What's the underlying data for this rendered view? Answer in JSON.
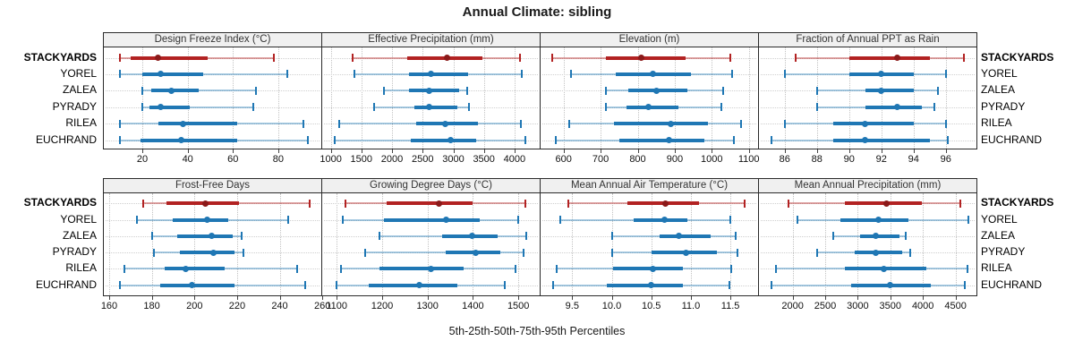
{
  "title": "Annual Climate: sibling",
  "caption": "5th-25th-50th-75th-95th Percentiles",
  "sites": [
    "STACKYARDS",
    "YOREL",
    "ZALEA",
    "PYRADY",
    "RILEA",
    "EUCHRAND"
  ],
  "highlight_site": "STACKYARDS",
  "colors": {
    "highlight_line": "#b22222",
    "highlight_light": "rgba(178,34,34,0.42)",
    "highlight_dot": "#8b1a1a",
    "normal_line": "#1f77b4",
    "normal_light": "rgba(31,119,180,0.40)",
    "normal_dot": "#1f77b4",
    "header_bg": "#f0f0f0",
    "panel_border": "#2a2a2a",
    "grid": "#c3c3c3"
  },
  "chart_data": [
    {
      "type": "percentile_interval",
      "title": "Design Freeze Index (°C)",
      "percentiles": [
        5,
        25,
        50,
        75,
        95
      ],
      "domain": [
        3,
        99
      ],
      "tick_values": [
        20,
        40,
        60,
        80
      ],
      "tick_labels": [
        "20",
        "40",
        "60",
        "80"
      ],
      "series": [
        {
          "name": "STACKYARDS",
          "values": [
            10,
            15,
            27,
            49,
            78
          ]
        },
        {
          "name": "YOREL",
          "values": [
            10,
            20,
            28,
            47,
            84
          ]
        },
        {
          "name": "ZALEA",
          "values": [
            20,
            24,
            33,
            45,
            70
          ]
        },
        {
          "name": "PYRADY",
          "values": [
            20,
            23,
            28,
            41,
            69
          ]
        },
        {
          "name": "RILEA",
          "values": [
            10,
            27,
            38,
            62,
            91
          ]
        },
        {
          "name": "EUCHRAND",
          "values": [
            10,
            19,
            37,
            62,
            93
          ]
        }
      ]
    },
    {
      "type": "percentile_interval",
      "title": "Effective Precipitation (mm)",
      "percentiles": [
        5,
        25,
        50,
        75,
        95
      ],
      "domain": [
        860,
        4410
      ],
      "tick_values": [
        1000,
        1500,
        2000,
        2500,
        3000,
        3500,
        4000
      ],
      "tick_labels": [
        "1000",
        "1500",
        "2000",
        "2500",
        "3000",
        "3500",
        "4000"
      ],
      "series": [
        {
          "name": "STACKYARDS",
          "values": [
            1360,
            2250,
            2900,
            3480,
            4090
          ]
        },
        {
          "name": "YOREL",
          "values": [
            1390,
            2270,
            2640,
            3240,
            4110
          ]
        },
        {
          "name": "ZALEA",
          "values": [
            1860,
            2270,
            2610,
            3100,
            3230
          ]
        },
        {
          "name": "PYRADY",
          "values": [
            1710,
            2370,
            2600,
            3070,
            3260
          ]
        },
        {
          "name": "RILEA",
          "values": [
            1130,
            2390,
            2870,
            3400,
            4100
          ]
        },
        {
          "name": "EUCHRAND",
          "values": [
            1060,
            2310,
            2950,
            3380,
            4170
          ]
        }
      ]
    },
    {
      "type": "percentile_interval",
      "title": "Elevation (m)",
      "percentiles": [
        5,
        25,
        50,
        75,
        95
      ],
      "domain": [
        538,
        1125
      ],
      "tick_values": [
        600,
        700,
        800,
        900,
        1000,
        1100
      ],
      "tick_labels": [
        "600",
        "700",
        "800",
        "900",
        "1000",
        "1100"
      ],
      "series": [
        {
          "name": "STACKYARDS",
          "values": [
            570,
            715,
            810,
            930,
            1050
          ]
        },
        {
          "name": "YOREL",
          "values": [
            620,
            740,
            840,
            945,
            1055
          ]
        },
        {
          "name": "ZALEA",
          "values": [
            715,
            775,
            850,
            935,
            1030
          ]
        },
        {
          "name": "PYRADY",
          "values": [
            715,
            770,
            830,
            910,
            1025
          ]
        },
        {
          "name": "RILEA",
          "values": [
            615,
            735,
            890,
            990,
            1080
          ]
        },
        {
          "name": "EUCHRAND",
          "values": [
            580,
            750,
            885,
            980,
            1060
          ]
        }
      ]
    },
    {
      "type": "percentile_interval",
      "title": "Fraction of Annual PPT as Rain",
      "percentiles": [
        5,
        25,
        50,
        75,
        95
      ],
      "domain": [
        84.4,
        97.9
      ],
      "tick_values": [
        86,
        88,
        90,
        92,
        94,
        96
      ],
      "tick_labels": [
        "86",
        "88",
        "90",
        "92",
        "94",
        "96"
      ],
      "series": [
        {
          "name": "STACKYARDS",
          "values": [
            86.7,
            90,
            93,
            95,
            97.1
          ]
        },
        {
          "name": "YOREL",
          "values": [
            86,
            90,
            92,
            94,
            96
          ]
        },
        {
          "name": "ZALEA",
          "values": [
            88,
            91,
            92,
            94,
            95.5
          ]
        },
        {
          "name": "PYRADY",
          "values": [
            88,
            91,
            93,
            94.5,
            95.3
          ]
        },
        {
          "name": "RILEA",
          "values": [
            86,
            89,
            91,
            94,
            96
          ]
        },
        {
          "name": "EUCHRAND",
          "values": [
            85.2,
            89,
            91,
            95,
            96.1
          ]
        }
      ]
    },
    {
      "type": "percentile_interval",
      "title": "Frost-Free Days",
      "percentiles": [
        5,
        25,
        50,
        75,
        95
      ],
      "domain": [
        157.5,
        259.5
      ],
      "tick_values": [
        160,
        180,
        200,
        220,
        240,
        260
      ],
      "tick_labels": [
        "160",
        "180",
        "200",
        "220",
        "240",
        "260"
      ],
      "series": [
        {
          "name": "STACKYARDS",
          "values": [
            176,
            187,
            205,
            221,
            254
          ]
        },
        {
          "name": "YOREL",
          "values": [
            173,
            190,
            206,
            216,
            244
          ]
        },
        {
          "name": "ZALEA",
          "values": [
            180,
            192,
            208,
            218,
            222
          ]
        },
        {
          "name": "PYRADY",
          "values": [
            181,
            193,
            209,
            219,
            223
          ]
        },
        {
          "name": "RILEA",
          "values": [
            167,
            186,
            196,
            214,
            248
          ]
        },
        {
          "name": "EUCHRAND",
          "values": [
            165,
            184,
            199,
            219,
            252
          ]
        }
      ]
    },
    {
      "type": "percentile_interval",
      "title": "Growing Degree Days (°C)",
      "percentiles": [
        5,
        25,
        50,
        75,
        95
      ],
      "domain": [
        1068,
        1547
      ],
      "tick_values": [
        1100,
        1200,
        1300,
        1400,
        1500
      ],
      "tick_labels": [
        "1100",
        "1200",
        "1300",
        "1400",
        "1500"
      ],
      "series": [
        {
          "name": "STACKYARDS",
          "values": [
            1120,
            1210,
            1325,
            1400,
            1515
          ]
        },
        {
          "name": "YOREL",
          "values": [
            1113,
            1203,
            1340,
            1415,
            1500
          ]
        },
        {
          "name": "ZALEA",
          "values": [
            1195,
            1333,
            1398,
            1455,
            1517
          ]
        },
        {
          "name": "PYRADY",
          "values": [
            1163,
            1340,
            1405,
            1460,
            1512
          ]
        },
        {
          "name": "RILEA",
          "values": [
            1110,
            1195,
            1308,
            1380,
            1494
          ]
        },
        {
          "name": "EUCHRAND",
          "values": [
            1099,
            1170,
            1281,
            1365,
            1470
          ]
        }
      ]
    },
    {
      "type": "percentile_interval",
      "title": "Mean Annual Air Temperature (°C)",
      "percentiles": [
        5,
        25,
        50,
        75,
        95
      ],
      "domain": [
        9.1,
        11.85
      ],
      "tick_values": [
        9.5,
        10.0,
        10.5,
        11.0,
        11.5
      ],
      "tick_labels": [
        "9.5",
        "10.0",
        "10.5",
        "11.0",
        "11.5"
      ],
      "series": [
        {
          "name": "STACKYARDS",
          "values": [
            9.45,
            10.2,
            10.68,
            11.1,
            11.68
          ]
        },
        {
          "name": "YOREL",
          "values": [
            9.35,
            10.28,
            10.67,
            10.96,
            11.5
          ]
        },
        {
          "name": "ZALEA",
          "values": [
            10.0,
            10.6,
            10.85,
            11.25,
            11.57
          ]
        },
        {
          "name": "PYRADY",
          "values": [
            10.0,
            10.5,
            10.94,
            11.33,
            11.59
          ]
        },
        {
          "name": "RILEA",
          "values": [
            9.3,
            10.02,
            10.52,
            10.9,
            11.51
          ]
        },
        {
          "name": "EUCHRAND",
          "values": [
            9.26,
            9.94,
            10.5,
            10.9,
            11.49
          ]
        }
      ]
    },
    {
      "type": "percentile_interval",
      "title": "Mean Annual Precipitation (mm)",
      "percentiles": [
        5,
        25,
        50,
        75,
        95
      ],
      "domain": [
        1484,
        4822
      ],
      "tick_values": [
        2000,
        2500,
        3000,
        3500,
        4000,
        4500
      ],
      "tick_labels": [
        "2000",
        "2500",
        "3000",
        "3500",
        "4000",
        "4500"
      ],
      "series": [
        {
          "name": "STACKYARDS",
          "values": [
            1930,
            2800,
            3440,
            3985,
            4580
          ]
        },
        {
          "name": "YOREL",
          "values": [
            2080,
            2740,
            3320,
            3780,
            4700
          ]
        },
        {
          "name": "ZALEA",
          "values": [
            2630,
            3030,
            3280,
            3640,
            3740
          ]
        },
        {
          "name": "PYRADY",
          "values": [
            2370,
            2960,
            3280,
            3680,
            3800
          ]
        },
        {
          "name": "RILEA",
          "values": [
            1740,
            2800,
            3400,
            4060,
            4680
          ]
        },
        {
          "name": "EUCHRAND",
          "values": [
            1670,
            2900,
            3500,
            4120,
            4640
          ]
        }
      ]
    }
  ]
}
